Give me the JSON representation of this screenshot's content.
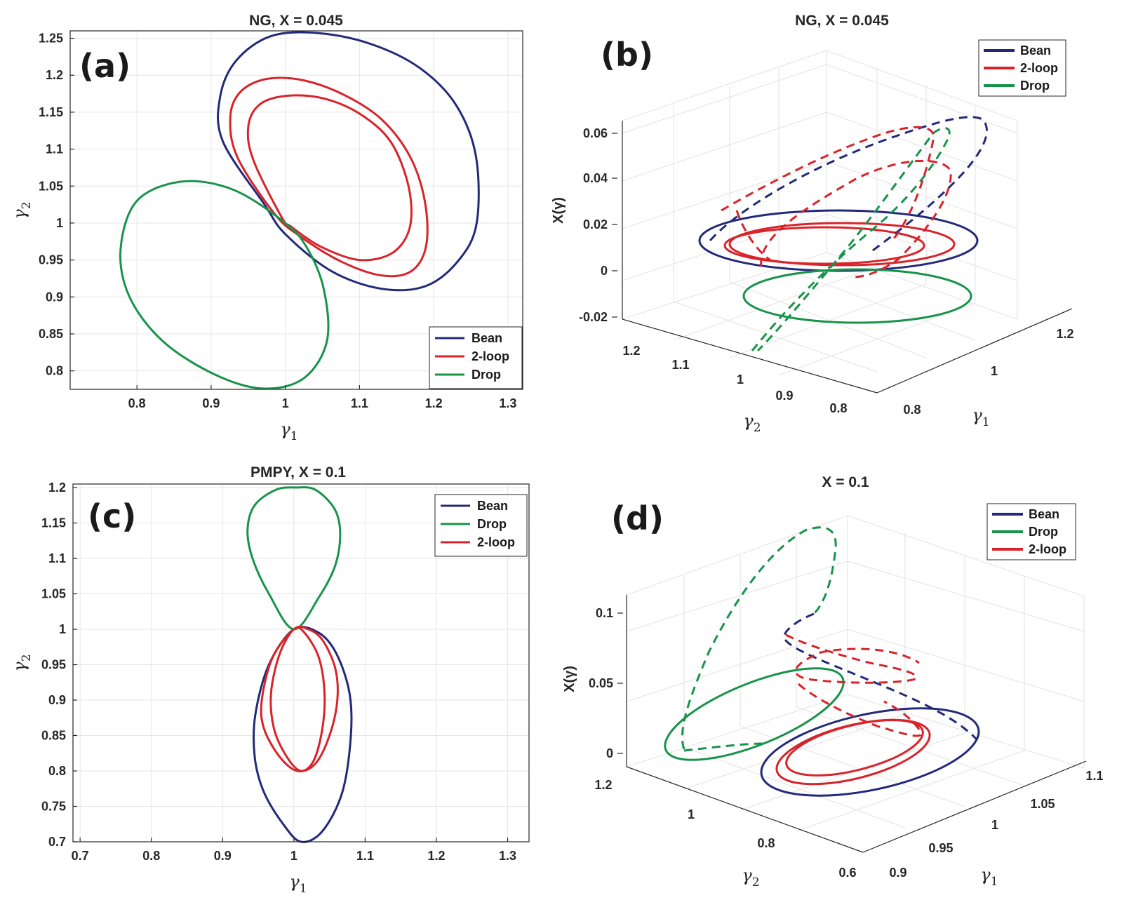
{
  "colors": {
    "bean": "#23297a",
    "twoloop": "#d9232a",
    "drop": "#17944a"
  },
  "chart_data": [
    {
      "id": "a",
      "type": "line",
      "panel_label": "(a)",
      "title": "NG, X = 0.045",
      "xlabel": "γ",
      "xlabel_sub": "1",
      "ylabel": "γ",
      "ylabel_sub": "2",
      "xlim": [
        0.71,
        1.32
      ],
      "ylim": [
        0.775,
        1.26
      ],
      "xticks": [
        "0.8",
        "0.9",
        "1",
        "1.1",
        "1.2",
        "1.3"
      ],
      "xtick_values": [
        0.8,
        0.9,
        1.0,
        1.1,
        1.2,
        1.3
      ],
      "yticks": [
        "0.8",
        "0.85",
        "0.9",
        "0.95",
        "1",
        "1.05",
        "1.1",
        "1.15",
        "1.2",
        "1.25"
      ],
      "ytick_values": [
        0.8,
        0.85,
        0.9,
        0.95,
        1.0,
        1.05,
        1.1,
        1.15,
        1.2,
        1.25
      ],
      "grid": true,
      "legend_position": "bottom-right",
      "legend": [
        "Bean",
        "2-loop",
        "Drop"
      ],
      "series": [
        {
          "name": "Bean",
          "color_key": "bean",
          "curves": [
            {
              "x": [
                0.972,
                0.916,
                0.912,
                0.934,
                0.981,
                1.045,
                1.116,
                1.181,
                1.23,
                1.257,
                1.258,
                1.234,
                1.19,
                1.13,
                1.062,
                1.0,
                0.972
              ],
              "y": [
                1.025,
                1.11,
                1.17,
                1.22,
                1.253,
                1.257,
                1.242,
                1.21,
                1.16,
                1.09,
                1.0,
                0.95,
                0.915,
                0.911,
                0.935,
                0.985,
                1.025
              ]
            }
          ]
        },
        {
          "name": "2-loop",
          "color_key": "twoloop",
          "curves": [
            {
              "x": [
                0.985,
                0.935,
                0.926,
                0.94,
                0.975,
                1.025,
                1.08,
                1.13,
                1.168,
                1.188,
                1.19,
                1.17,
                1.13,
                1.075,
                1.02,
                0.985
              ],
              "y": [
                1.013,
                1.09,
                1.145,
                1.178,
                1.195,
                1.193,
                1.173,
                1.14,
                1.09,
                1.03,
                0.97,
                0.935,
                0.929,
                0.948,
                0.982,
                1.013
              ]
            },
            {
              "x": [
                0.995,
                0.957,
                0.95,
                0.965,
                1.0,
                1.05,
                1.1,
                1.142,
                1.166,
                1.168,
                1.145,
                1.1,
                1.048,
                1.008,
                0.995
              ],
              "y": [
                1.008,
                1.085,
                1.13,
                1.16,
                1.172,
                1.169,
                1.148,
                1.11,
                1.05,
                0.995,
                0.96,
                0.95,
                0.968,
                0.995,
                1.008
              ]
            }
          ]
        },
        {
          "name": "Drop",
          "color_key": "drop",
          "curves": [
            {
              "x": [
                1.0,
                0.93,
                0.86,
                0.8,
                0.778,
                0.79,
                0.835,
                0.905,
                0.97,
                1.025,
                1.056,
                1.052,
                1.03,
                1.0
              ],
              "y": [
                1.0,
                1.045,
                1.056,
                1.03,
                0.965,
                0.9,
                0.84,
                0.795,
                0.776,
                0.79,
                0.84,
                0.91,
                0.965,
                1.0
              ]
            }
          ]
        }
      ]
    },
    {
      "id": "b",
      "type": "line",
      "panel_label": "(b)",
      "title": "NG, X = 0.045",
      "view": "3d",
      "zlabel": "X(γ)",
      "zticks": [
        "-0.02",
        "0",
        "0.02",
        "0.04",
        "0.06"
      ],
      "ztick_values": [
        -0.02,
        0.0,
        0.02,
        0.04,
        0.06
      ],
      "zlim": [
        -0.025,
        0.066
      ],
      "y2ticks": [
        "1.2",
        "1.1",
        "1",
        "0.9",
        "0.8"
      ],
      "y1ticks": [
        "0.8",
        "1",
        "1.2"
      ],
      "xlabel": "γ",
      "xlabel_sub": "2",
      "ylabel": "γ",
      "ylabel_sub": "1",
      "legend_position": "top-right",
      "legend": [
        "Bean",
        "2-loop",
        "Drop"
      ],
      "note": "Solid loops lie in the X = 0 plane; dashed loops are the X(γ) lifts. Curves given as (u,v) in normalized panel coordinates, estimated from the figure.",
      "series": [
        {
          "name": "Bean",
          "color_key": "bean",
          "curves": [
            {
              "style": "solid",
              "cx": 0.5,
              "cy": 0.5,
              "rx": 0.5,
              "ry": 0.5,
              "ellipse": true
            },
            {
              "style": "dashed",
              "u": [
                0.01,
                0.16,
                0.4,
                0.62,
                0.82,
                0.96,
                0.98,
                0.92,
                0.82,
                0.7
              ],
              "v": [
                0.52,
                0.62,
                0.76,
                0.9,
                1.0,
                0.99,
                0.88,
                0.75,
                0.62,
                0.44
              ]
            }
          ]
        },
        {
          "name": "2-loop",
          "color_key": "twoloop",
          "curves": [
            {
              "style": "solid",
              "ellipse": true
            },
            {
              "style": "solid",
              "ellipse": true
            },
            {
              "style": "dashed",
              "u": [
                0.1,
                0.3,
                0.55,
                0.78,
                0.8,
                0.7,
                0.55,
                0.4
              ],
              "v": [
                0.62,
                0.72,
                0.88,
                0.98,
                0.9,
                0.72,
                0.6,
                0.42
              ]
            },
            {
              "style": "dashed",
              "u": [
                0.25,
                0.45,
                0.65,
                0.82,
                0.88,
                0.8,
                0.6,
                0.45
              ],
              "v": [
                0.55,
                0.63,
                0.75,
                0.82,
                0.75,
                0.6,
                0.5,
                0.4
              ]
            }
          ]
        },
        {
          "name": "Drop",
          "color_key": "drop",
          "curves": [
            {
              "style": "solid",
              "ellipse": true
            },
            {
              "style": "dashed",
              "u": [
                0.18,
                0.3,
                0.5,
                0.72,
                0.9,
                0.95,
                0.86,
                0.7,
                0.5
              ],
              "v": [
                0.0,
                0.18,
                0.4,
                0.66,
                0.95,
                0.99,
                0.9,
                0.75,
                0.5
              ]
            }
          ]
        }
      ]
    },
    {
      "id": "c",
      "type": "line",
      "panel_label": "(c)",
      "title": "PMPY, X = 0.1",
      "xlabel": "γ",
      "xlabel_sub": "1",
      "ylabel": "γ",
      "ylabel_sub": "2",
      "xlim": [
        0.69,
        1.33
      ],
      "ylim": [
        0.7,
        1.205
      ],
      "xticks": [
        "0.7",
        "0.8",
        "0.9",
        "1",
        "1.1",
        "1.2",
        "1.3"
      ],
      "xtick_values": [
        0.7,
        0.8,
        0.9,
        1.0,
        1.1,
        1.2,
        1.3
      ],
      "yticks": [
        "0.7",
        "0.75",
        "0.8",
        "0.85",
        "0.9",
        "0.95",
        "1",
        "1.05",
        "1.1",
        "1.15",
        "1.2"
      ],
      "ytick_values": [
        0.7,
        0.75,
        0.8,
        0.85,
        0.9,
        0.95,
        1.0,
        1.05,
        1.1,
        1.15,
        1.2
      ],
      "grid": true,
      "legend_position": "top-right",
      "legend": [
        "Bean",
        "Drop",
        "2-loop"
      ],
      "series": [
        {
          "name": "Bean",
          "color_key": "bean",
          "curves": [
            {
              "x": [
                1.0,
                0.965,
                0.946,
                0.945,
                0.958,
                0.985,
                1.01,
                1.04,
                1.068,
                1.08,
                1.078,
                1.06,
                1.035,
                1.0
              ],
              "y": [
                1.0,
                0.95,
                0.88,
                0.82,
                0.77,
                0.725,
                0.7,
                0.715,
                0.77,
                0.85,
                0.91,
                0.965,
                0.995,
                1.0
              ]
            }
          ]
        },
        {
          "name": "Drop",
          "color_key": "drop",
          "curves": [
            {
              "x": [
                1.0,
                0.965,
                0.942,
                0.935,
                0.945,
                0.975,
                1.003,
                1.03,
                1.057,
                1.065,
                1.058,
                1.035,
                1.0
              ],
              "y": [
                1.0,
                1.05,
                1.1,
                1.14,
                1.175,
                1.197,
                1.2,
                1.197,
                1.17,
                1.135,
                1.09,
                1.045,
                1.0
              ]
            }
          ]
        },
        {
          "name": "2-loop",
          "color_key": "twoloop",
          "curves": [
            {
              "x": [
                1.0,
                0.97,
                0.955,
                0.958,
                0.98,
                1.005,
                1.03,
                1.05,
                1.061,
                1.058,
                1.04,
                1.02,
                1.0
              ],
              "y": [
                1.0,
                0.96,
                0.9,
                0.86,
                0.82,
                0.8,
                0.81,
                0.85,
                0.9,
                0.945,
                0.985,
                1.0,
                1.0
              ]
            },
            {
              "x": [
                1.0,
                0.98,
                0.968,
                0.972,
                0.99,
                1.01,
                1.028,
                1.04,
                1.043,
                1.035,
                1.015,
                1.0
              ],
              "y": [
                1.0,
                0.965,
                0.91,
                0.86,
                0.82,
                0.8,
                0.815,
                0.86,
                0.91,
                0.96,
                0.995,
                1.0
              ]
            }
          ]
        }
      ]
    },
    {
      "id": "d",
      "type": "line",
      "panel_label": "(d)",
      "title": "X = 0.1",
      "view": "3d",
      "zlabel": "X(γ)",
      "zticks": [
        "0",
        "0.05",
        "0.1"
      ],
      "ztick_values": [
        0.0,
        0.05,
        0.1
      ],
      "zlim": [
        -0.005,
        0.112
      ],
      "y2ticks": [
        "1.2",
        "1",
        "0.8",
        "0.6"
      ],
      "y1ticks": [
        "0.9",
        "0.95",
        "1",
        "1.05",
        "1.1"
      ],
      "xlabel": "γ",
      "xlabel_sub": "2",
      "ylabel": "γ",
      "ylabel_sub": "1",
      "legend_position": "top-right",
      "legend": [
        "Bean",
        "Drop",
        "2-loop"
      ],
      "note": "Solid loops lie in the X = 0 plane; dashed loops are the X(γ) lifts. Shapes estimated from the figure.",
      "series": [
        {
          "name": "Bean",
          "color_key": "bean",
          "curves": [
            {
              "style": "solid",
              "ellipse": true
            },
            {
              "style": "dashed"
            }
          ]
        },
        {
          "name": "Drop",
          "color_key": "drop",
          "curves": [
            {
              "style": "solid",
              "ellipse": true
            },
            {
              "style": "dashed"
            }
          ]
        },
        {
          "name": "2-loop",
          "color_key": "twoloop",
          "curves": [
            {
              "style": "solid",
              "ellipse": true
            },
            {
              "style": "solid",
              "ellipse": true
            },
            {
              "style": "dashed"
            }
          ]
        }
      ]
    }
  ]
}
